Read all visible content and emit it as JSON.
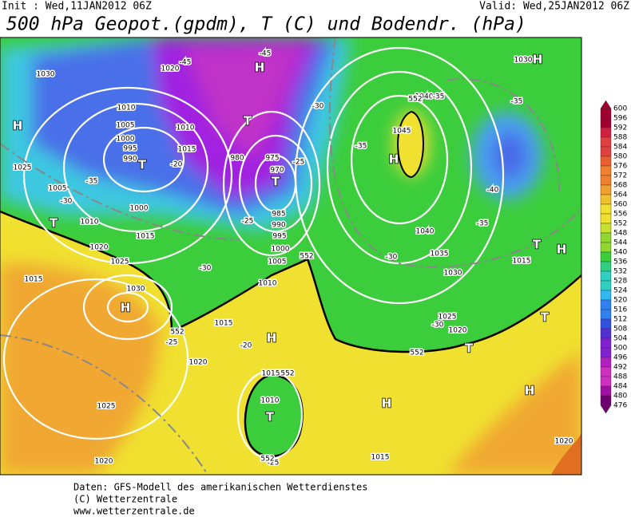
{
  "header": {
    "init": "Init : Wed,11JAN2012 06Z",
    "valid": "Valid: Wed,25JAN2012 06Z",
    "title": "500 hPa Geopot.(gpdm), T (C) und Bodendr. (hPa)"
  },
  "colorbar": {
    "labels": [
      "600",
      "596",
      "592",
      "588",
      "584",
      "580",
      "576",
      "572",
      "568",
      "564",
      "560",
      "556",
      "552",
      "548",
      "544",
      "540",
      "536",
      "532",
      "528",
      "524",
      "520",
      "516",
      "512",
      "508",
      "504",
      "500",
      "496",
      "492",
      "488",
      "484",
      "480",
      "476"
    ]
  },
  "map": {
    "centers": [
      "H",
      "T",
      "H",
      "T",
      "T",
      "H",
      "T",
      "H",
      "H",
      "T",
      "H",
      "H",
      "T",
      "T",
      "H",
      "H",
      "T"
    ],
    "labels": [
      "1030",
      "1020",
      "1010",
      "1005",
      "1000",
      "995",
      "990",
      "1010",
      "1015",
      "980",
      "975",
      "970",
      "1025",
      "1005",
      "1000",
      "1010",
      "1015",
      "1020",
      "1025",
      "1015",
      "1030",
      "1010",
      "1005",
      "1000",
      "995",
      "990",
      "985",
      "1040",
      "1035",
      "1030",
      "1025",
      "1020",
      "1015",
      "1045",
      "1040",
      "1030",
      "1020",
      "1025",
      "1020",
      "1015",
      "1010",
      "1015",
      "1020",
      "1015",
      "-45",
      "-45",
      "-30",
      "-35",
      "-35",
      "-35",
      "-25",
      "-40",
      "-35",
      "-35",
      "-30",
      "-25",
      "-30",
      "-30",
      "-25",
      "-20",
      "-30",
      "-20",
      "-25",
      "552",
      "552",
      "552",
      "552",
      "552",
      "552"
    ]
  },
  "footer": {
    "lines": [
      "Daten: GFS-Modell des amerikanischen Wetterdienstes",
      "(C) Wetterzentrale",
      "www.wetterzentrale.de"
    ]
  }
}
